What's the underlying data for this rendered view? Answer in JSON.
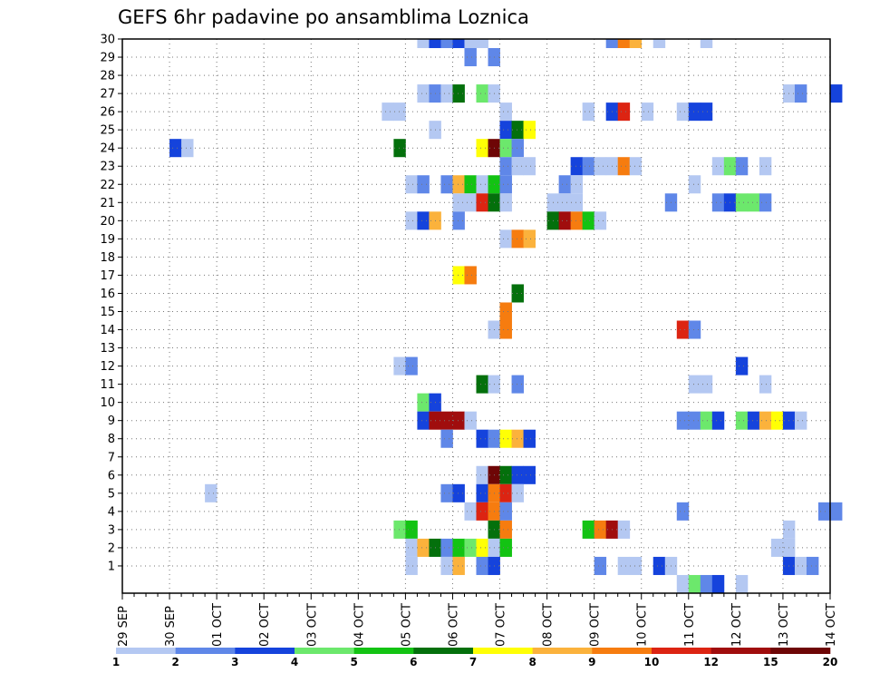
{
  "chart_data": {
    "type": "heatmap",
    "title": "GEFS 6hr padavine po ansamblima Loznica",
    "xlabel": "",
    "ylabel": "",
    "x_ticks": [
      "29 SEP",
      "30 SEP",
      "01 OCT",
      "02 OCT",
      "03 OCT",
      "04 OCT",
      "05 OCT",
      "06 OCT",
      "07 OCT",
      "08 OCT",
      "09 OCT",
      "10 OCT",
      "11 OCT",
      "12 OCT",
      "13 OCT",
      "14 OCT"
    ],
    "y_ticks": [
      1,
      2,
      3,
      4,
      5,
      6,
      7,
      8,
      9,
      10,
      11,
      12,
      13,
      14,
      15,
      16,
      17,
      18,
      19,
      20,
      21,
      22,
      23,
      24,
      25,
      26,
      27,
      28,
      29,
      30
    ],
    "y_range": [
      0,
      30
    ],
    "x_range_days": [
      0,
      15
    ],
    "step_hours": 6,
    "grid": true,
    "legend": {
      "position": "bottom",
      "labels": [
        "1",
        "2",
        "3",
        "4",
        "5",
        "6",
        "7",
        "8",
        "9",
        "10",
        "12",
        "15",
        "20"
      ],
      "colors": [
        "#b4c8f2",
        "#5f87e8",
        "#1543dc",
        "#6ce86c",
        "#13c313",
        "#04700c",
        "#ffff05",
        "#fbb23c",
        "#f67c0f",
        "#dc2412",
        "#a00d0d",
        "#6e0606"
      ]
    },
    "cells": [
      {
        "member": 30,
        "step": 25,
        "bin": 0
      },
      {
        "member": 30,
        "step": 26,
        "bin": 2
      },
      {
        "member": 30,
        "step": 27,
        "bin": 1
      },
      {
        "member": 30,
        "step": 28,
        "bin": 2
      },
      {
        "member": 30,
        "step": 29,
        "bin": 0
      },
      {
        "member": 30,
        "step": 30,
        "bin": 0
      },
      {
        "member": 30,
        "step": 41,
        "bin": 1
      },
      {
        "member": 30,
        "step": 42,
        "bin": 8
      },
      {
        "member": 30,
        "step": 43,
        "bin": 7
      },
      {
        "member": 30,
        "step": 45,
        "bin": 0
      },
      {
        "member": 30,
        "step": 49,
        "bin": 0
      },
      {
        "member": 29,
        "step": 29,
        "bin": 1
      },
      {
        "member": 29,
        "step": 31,
        "bin": 1
      },
      {
        "member": 27,
        "step": 25,
        "bin": 0
      },
      {
        "member": 27,
        "step": 26,
        "bin": 1
      },
      {
        "member": 27,
        "step": 27,
        "bin": 0
      },
      {
        "member": 27,
        "step": 28,
        "bin": 5
      },
      {
        "member": 27,
        "step": 30,
        "bin": 3
      },
      {
        "member": 27,
        "step": 31,
        "bin": 0
      },
      {
        "member": 27,
        "step": 56,
        "bin": 0
      },
      {
        "member": 27,
        "step": 57,
        "bin": 1
      },
      {
        "member": 27,
        "step": 60,
        "bin": 2
      },
      {
        "member": 26,
        "step": 22,
        "bin": 0
      },
      {
        "member": 26,
        "step": 23,
        "bin": 0
      },
      {
        "member": 26,
        "step": 32,
        "bin": 0
      },
      {
        "member": 26,
        "step": 39,
        "bin": 0
      },
      {
        "member": 26,
        "step": 41,
        "bin": 2
      },
      {
        "member": 26,
        "step": 42,
        "bin": 9
      },
      {
        "member": 26,
        "step": 44,
        "bin": 0
      },
      {
        "member": 26,
        "step": 47,
        "bin": 0
      },
      {
        "member": 26,
        "step": 48,
        "bin": 2
      },
      {
        "member": 26,
        "step": 49,
        "bin": 2
      },
      {
        "member": 25,
        "step": 26,
        "bin": 0
      },
      {
        "member": 25,
        "step": 32,
        "bin": 2
      },
      {
        "member": 25,
        "step": 33,
        "bin": 5
      },
      {
        "member": 25,
        "step": 34,
        "bin": 6
      },
      {
        "member": 24,
        "step": 4,
        "bin": 2
      },
      {
        "member": 24,
        "step": 5,
        "bin": 0
      },
      {
        "member": 24,
        "step": 23,
        "bin": 5
      },
      {
        "member": 24,
        "step": 30,
        "bin": 6
      },
      {
        "member": 24,
        "step": 31,
        "bin": 11
      },
      {
        "member": 24,
        "step": 32,
        "bin": 3
      },
      {
        "member": 24,
        "step": 33,
        "bin": 1
      },
      {
        "member": 23,
        "step": 32,
        "bin": 1
      },
      {
        "member": 23,
        "step": 33,
        "bin": 0
      },
      {
        "member": 23,
        "step": 34,
        "bin": 0
      },
      {
        "member": 23,
        "step": 38,
        "bin": 2
      },
      {
        "member": 23,
        "step": 39,
        "bin": 1
      },
      {
        "member": 23,
        "step": 40,
        "bin": 0
      },
      {
        "member": 23,
        "step": 41,
        "bin": 0
      },
      {
        "member": 23,
        "step": 42,
        "bin": 8
      },
      {
        "member": 23,
        "step": 43,
        "bin": 0
      },
      {
        "member": 23,
        "step": 50,
        "bin": 0
      },
      {
        "member": 23,
        "step": 51,
        "bin": 3
      },
      {
        "member": 23,
        "step": 52,
        "bin": 1
      },
      {
        "member": 23,
        "step": 54,
        "bin": 0
      },
      {
        "member": 22,
        "step": 24,
        "bin": 0
      },
      {
        "member": 22,
        "step": 25,
        "bin": 1
      },
      {
        "member": 22,
        "step": 27,
        "bin": 1
      },
      {
        "member": 22,
        "step": 28,
        "bin": 7
      },
      {
        "member": 22,
        "step": 29,
        "bin": 4
      },
      {
        "member": 22,
        "step": 30,
        "bin": 0
      },
      {
        "member": 22,
        "step": 31,
        "bin": 4
      },
      {
        "member": 22,
        "step": 32,
        "bin": 1
      },
      {
        "member": 22,
        "step": 37,
        "bin": 1
      },
      {
        "member": 22,
        "step": 38,
        "bin": 0
      },
      {
        "member": 22,
        "step": 48,
        "bin": 0
      },
      {
        "member": 21,
        "step": 28,
        "bin": 0
      },
      {
        "member": 21,
        "step": 29,
        "bin": 0
      },
      {
        "member": 21,
        "step": 30,
        "bin": 9
      },
      {
        "member": 21,
        "step": 31,
        "bin": 5
      },
      {
        "member": 21,
        "step": 32,
        "bin": 0
      },
      {
        "member": 21,
        "step": 36,
        "bin": 0
      },
      {
        "member": 21,
        "step": 37,
        "bin": 0
      },
      {
        "member": 21,
        "step": 38,
        "bin": 0
      },
      {
        "member": 21,
        "step": 46,
        "bin": 1
      },
      {
        "member": 21,
        "step": 50,
        "bin": 1
      },
      {
        "member": 21,
        "step": 51,
        "bin": 2
      },
      {
        "member": 21,
        "step": 52,
        "bin": 3
      },
      {
        "member": 21,
        "step": 53,
        "bin": 3
      },
      {
        "member": 21,
        "step": 54,
        "bin": 1
      },
      {
        "member": 20,
        "step": 24,
        "bin": 0
      },
      {
        "member": 20,
        "step": 25,
        "bin": 2
      },
      {
        "member": 20,
        "step": 26,
        "bin": 7
      },
      {
        "member": 20,
        "step": 28,
        "bin": 1
      },
      {
        "member": 20,
        "step": 36,
        "bin": 5
      },
      {
        "member": 20,
        "step": 37,
        "bin": 10
      },
      {
        "member": 20,
        "step": 38,
        "bin": 8
      },
      {
        "member": 20,
        "step": 39,
        "bin": 4
      },
      {
        "member": 20,
        "step": 40,
        "bin": 0
      },
      {
        "member": 19,
        "step": 32,
        "bin": 0
      },
      {
        "member": 19,
        "step": 33,
        "bin": 8
      },
      {
        "member": 19,
        "step": 34,
        "bin": 7
      },
      {
        "member": 17,
        "step": 28,
        "bin": 6
      },
      {
        "member": 17,
        "step": 29,
        "bin": 8
      },
      {
        "member": 16,
        "step": 33,
        "bin": 5
      },
      {
        "member": 15,
        "step": 32,
        "bin": 8
      },
      {
        "member": 14,
        "step": 31,
        "bin": 0
      },
      {
        "member": 14,
        "step": 32,
        "bin": 8
      },
      {
        "member": 14,
        "step": 47,
        "bin": 9
      },
      {
        "member": 14,
        "step": 48,
        "bin": 1
      },
      {
        "member": 12,
        "step": 23,
        "bin": 0
      },
      {
        "member": 12,
        "step": 24,
        "bin": 1
      },
      {
        "member": 12,
        "step": 52,
        "bin": 2
      },
      {
        "member": 11,
        "step": 30,
        "bin": 5
      },
      {
        "member": 11,
        "step": 31,
        "bin": 0
      },
      {
        "member": 11,
        "step": 33,
        "bin": 1
      },
      {
        "member": 11,
        "step": 48,
        "bin": 0
      },
      {
        "member": 11,
        "step": 49,
        "bin": 0
      },
      {
        "member": 11,
        "step": 54,
        "bin": 0
      },
      {
        "member": 10,
        "step": 25,
        "bin": 3
      },
      {
        "member": 10,
        "step": 26,
        "bin": 2
      },
      {
        "member": 9,
        "step": 25,
        "bin": 2
      },
      {
        "member": 9,
        "step": 26,
        "bin": 10
      },
      {
        "member": 9,
        "step": 27,
        "bin": 10
      },
      {
        "member": 9,
        "step": 28,
        "bin": 10
      },
      {
        "member": 9,
        "step": 29,
        "bin": 0
      },
      {
        "member": 9,
        "step": 47,
        "bin": 1
      },
      {
        "member": 9,
        "step": 48,
        "bin": 1
      },
      {
        "member": 9,
        "step": 49,
        "bin": 3
      },
      {
        "member": 9,
        "step": 50,
        "bin": 2
      },
      {
        "member": 9,
        "step": 52,
        "bin": 3
      },
      {
        "member": 9,
        "step": 53,
        "bin": 2
      },
      {
        "member": 9,
        "step": 54,
        "bin": 7
      },
      {
        "member": 9,
        "step": 55,
        "bin": 6
      },
      {
        "member": 9,
        "step": 56,
        "bin": 2
      },
      {
        "member": 9,
        "step": 57,
        "bin": 0
      },
      {
        "member": 8,
        "step": 27,
        "bin": 1
      },
      {
        "member": 8,
        "step": 30,
        "bin": 2
      },
      {
        "member": 8,
        "step": 31,
        "bin": 1
      },
      {
        "member": 8,
        "step": 32,
        "bin": 6
      },
      {
        "member": 8,
        "step": 33,
        "bin": 7
      },
      {
        "member": 8,
        "step": 34,
        "bin": 2
      },
      {
        "member": 6,
        "step": 30,
        "bin": 0
      },
      {
        "member": 6,
        "step": 31,
        "bin": 11
      },
      {
        "member": 6,
        "step": 32,
        "bin": 5
      },
      {
        "member": 6,
        "step": 33,
        "bin": 2
      },
      {
        "member": 6,
        "step": 34,
        "bin": 2
      },
      {
        "member": 5,
        "step": 7,
        "bin": 0
      },
      {
        "member": 5,
        "step": 27,
        "bin": 1
      },
      {
        "member": 5,
        "step": 28,
        "bin": 2
      },
      {
        "member": 5,
        "step": 30,
        "bin": 2
      },
      {
        "member": 5,
        "step": 31,
        "bin": 8
      },
      {
        "member": 5,
        "step": 32,
        "bin": 9
      },
      {
        "member": 5,
        "step": 33,
        "bin": 0
      },
      {
        "member": 4,
        "step": 29,
        "bin": 0
      },
      {
        "member": 4,
        "step": 30,
        "bin": 9
      },
      {
        "member": 4,
        "step": 31,
        "bin": 8
      },
      {
        "member": 4,
        "step": 32,
        "bin": 1
      },
      {
        "member": 4,
        "step": 47,
        "bin": 1
      },
      {
        "member": 4,
        "step": 59,
        "bin": 1
      },
      {
        "member": 4,
        "step": 60,
        "bin": 1
      },
      {
        "member": 3,
        "step": 23,
        "bin": 3
      },
      {
        "member": 3,
        "step": 24,
        "bin": 4
      },
      {
        "member": 3,
        "step": 31,
        "bin": 5
      },
      {
        "member": 3,
        "step": 32,
        "bin": 8
      },
      {
        "member": 3,
        "step": 39,
        "bin": 4
      },
      {
        "member": 3,
        "step": 40,
        "bin": 8
      },
      {
        "member": 3,
        "step": 41,
        "bin": 10
      },
      {
        "member": 3,
        "step": 42,
        "bin": 0
      },
      {
        "member": 3,
        "step": 56,
        "bin": 0
      },
      {
        "member": 2,
        "step": 24,
        "bin": 0
      },
      {
        "member": 2,
        "step": 25,
        "bin": 7
      },
      {
        "member": 2,
        "step": 26,
        "bin": 5
      },
      {
        "member": 2,
        "step": 27,
        "bin": 1
      },
      {
        "member": 2,
        "step": 28,
        "bin": 4
      },
      {
        "member": 2,
        "step": 29,
        "bin": 3
      },
      {
        "member": 2,
        "step": 30,
        "bin": 6
      },
      {
        "member": 2,
        "step": 31,
        "bin": 0
      },
      {
        "member": 2,
        "step": 32,
        "bin": 4
      },
      {
        "member": 2,
        "step": 55,
        "bin": 0
      },
      {
        "member": 2,
        "step": 56,
        "bin": 0
      },
      {
        "member": 1,
        "step": 24,
        "bin": 0
      },
      {
        "member": 1,
        "step": 27,
        "bin": 0
      },
      {
        "member": 1,
        "step": 28,
        "bin": 7
      },
      {
        "member": 1,
        "step": 30,
        "bin": 1
      },
      {
        "member": 1,
        "step": 31,
        "bin": 2
      },
      {
        "member": 1,
        "step": 40,
        "bin": 1
      },
      {
        "member": 1,
        "step": 42,
        "bin": 0
      },
      {
        "member": 1,
        "step": 43,
        "bin": 0
      },
      {
        "member": 1,
        "step": 45,
        "bin": 2
      },
      {
        "member": 1,
        "step": 46,
        "bin": 0
      },
      {
        "member": 1,
        "step": 56,
        "bin": 2
      },
      {
        "member": 1,
        "step": 57,
        "bin": 0
      },
      {
        "member": 1,
        "step": 58,
        "bin": 1
      },
      {
        "member": 0,
        "step": 47,
        "bin": 0
      },
      {
        "member": 0,
        "step": 48,
        "bin": 3
      },
      {
        "member": 0,
        "step": 49,
        "bin": 1
      },
      {
        "member": 0,
        "step": 50,
        "bin": 2
      },
      {
        "member": 0,
        "step": 52,
        "bin": 0
      }
    ]
  }
}
